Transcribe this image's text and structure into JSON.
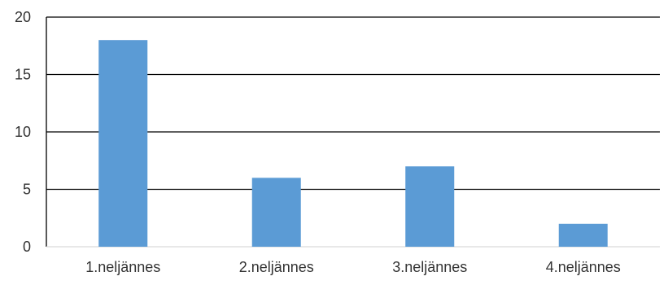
{
  "chart_data": {
    "type": "bar",
    "categories": [
      "1.neljännes",
      "2.neljännes",
      "3.neljännes",
      "4.neljännes"
    ],
    "values": [
      18,
      6,
      7,
      2
    ],
    "title": "",
    "xlabel": "",
    "ylabel": "",
    "ylim": [
      0,
      20
    ],
    "yticks": [
      0,
      5,
      10,
      15,
      20
    ],
    "grid": true,
    "legend": "none",
    "bar_color": "#5b9bd5",
    "grid_color": "#000000"
  }
}
